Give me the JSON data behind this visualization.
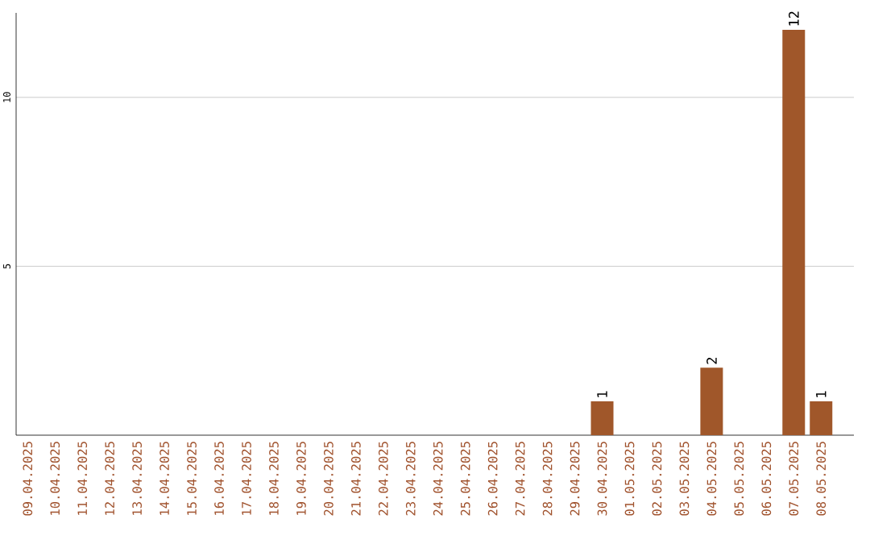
{
  "chart_data": {
    "type": "bar",
    "categories": [
      "09.04.2025",
      "10.04.2025",
      "11.04.2025",
      "12.04.2025",
      "13.04.2025",
      "14.04.2025",
      "15.04.2025",
      "16.04.2025",
      "17.04.2025",
      "18.04.2025",
      "19.04.2025",
      "20.04.2025",
      "21.04.2025",
      "22.04.2025",
      "23.04.2025",
      "24.04.2025",
      "25.04.2025",
      "26.04.2025",
      "27.04.2025",
      "28.04.2025",
      "29.04.2025",
      "30.04.2025",
      "01.05.2025",
      "02.05.2025",
      "03.05.2025",
      "04.05.2025",
      "05.05.2025",
      "06.05.2025",
      "07.05.2025",
      "08.05.2025"
    ],
    "values": [
      0,
      0,
      0,
      0,
      0,
      0,
      0,
      0,
      0,
      0,
      0,
      0,
      0,
      0,
      0,
      0,
      0,
      0,
      0,
      0,
      0,
      1,
      0,
      0,
      0,
      2,
      0,
      0,
      12,
      1
    ],
    "value_labels": [
      null,
      null,
      null,
      null,
      null,
      null,
      null,
      null,
      null,
      null,
      null,
      null,
      null,
      null,
      null,
      null,
      null,
      null,
      null,
      null,
      null,
      "1",
      null,
      null,
      null,
      "2",
      null,
      null,
      "12",
      "1"
    ],
    "color": "#a0572a",
    "ylim": [
      0,
      12.5
    ],
    "yticks": [
      5,
      10
    ],
    "grid": "y"
  }
}
